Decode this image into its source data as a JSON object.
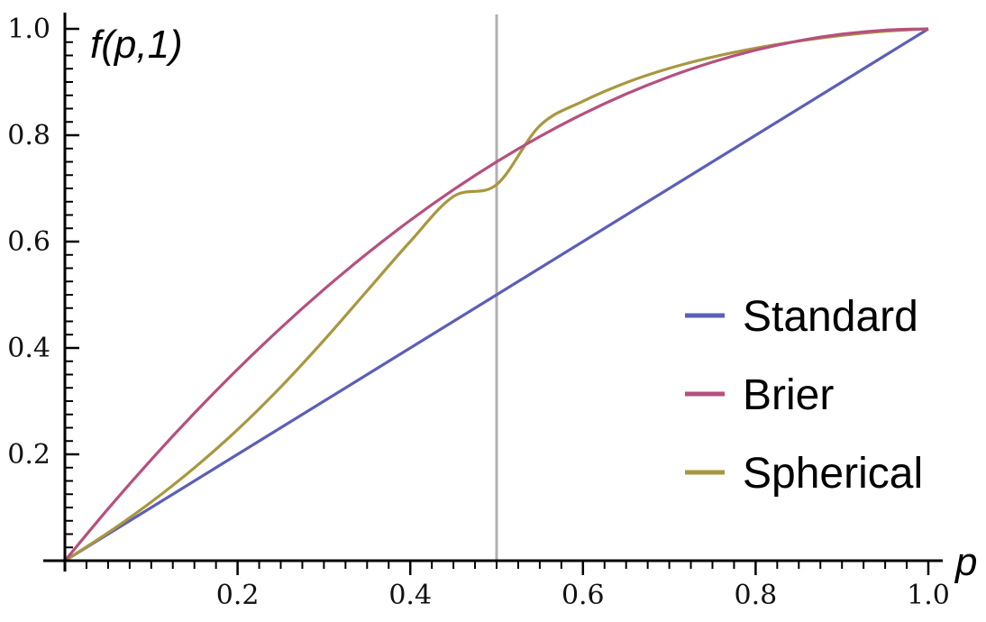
{
  "chart_data": {
    "type": "line",
    "xlabel": "p",
    "ylabel": "f(p,1)",
    "xlim": [
      0,
      1.0
    ],
    "ylim": [
      0,
      1.0
    ],
    "x_ticks": [
      "0.2",
      "0.4",
      "0.6",
      "0.8",
      "1.0"
    ],
    "y_ticks": [
      "0.2",
      "0.4",
      "0.6",
      "0.8",
      "1.0"
    ],
    "grid": false,
    "reference_line": {
      "x": 0.5,
      "color": "#b0b0b0"
    },
    "legend_position": "right",
    "x": [
      0,
      0.05,
      0.1,
      0.15,
      0.2,
      0.25,
      0.3,
      0.35,
      0.4,
      0.45,
      0.5,
      0.55,
      0.6,
      0.65,
      0.7,
      0.75,
      0.8,
      0.85,
      0.9,
      0.95,
      1.0
    ],
    "series": [
      {
        "name": "Standard",
        "color": "#5b5fb8",
        "values": [
          0,
          0.05,
          0.1,
          0.15,
          0.2,
          0.25,
          0.3,
          0.35,
          0.4,
          0.45,
          0.5,
          0.55,
          0.6,
          0.65,
          0.7,
          0.75,
          0.8,
          0.85,
          0.9,
          0.95,
          1.0
        ]
      },
      {
        "name": "Brier",
        "color": "#b5507f",
        "values": [
          0,
          0.0975,
          0.19,
          0.2775,
          0.36,
          0.4375,
          0.51,
          0.5775,
          0.64,
          0.6975,
          0.75,
          0.7975,
          0.84,
          0.8775,
          0.91,
          0.9375,
          0.96,
          0.9775,
          0.99,
          0.9975,
          1.0
        ]
      },
      {
        "name": "Spherical",
        "color": "#a8973f",
        "values": [
          0,
          0.0526,
          0.1104,
          0.1747,
          0.2465,
          0.3266,
          0.4144,
          0.5074,
          0.6002,
          0.6849,
          0.7071,
          0.8178,
          0.8638,
          0.8988,
          0.9258,
          0.9469,
          0.9636,
          0.977,
          0.9876,
          0.9955,
          1.0
        ]
      }
    ]
  }
}
